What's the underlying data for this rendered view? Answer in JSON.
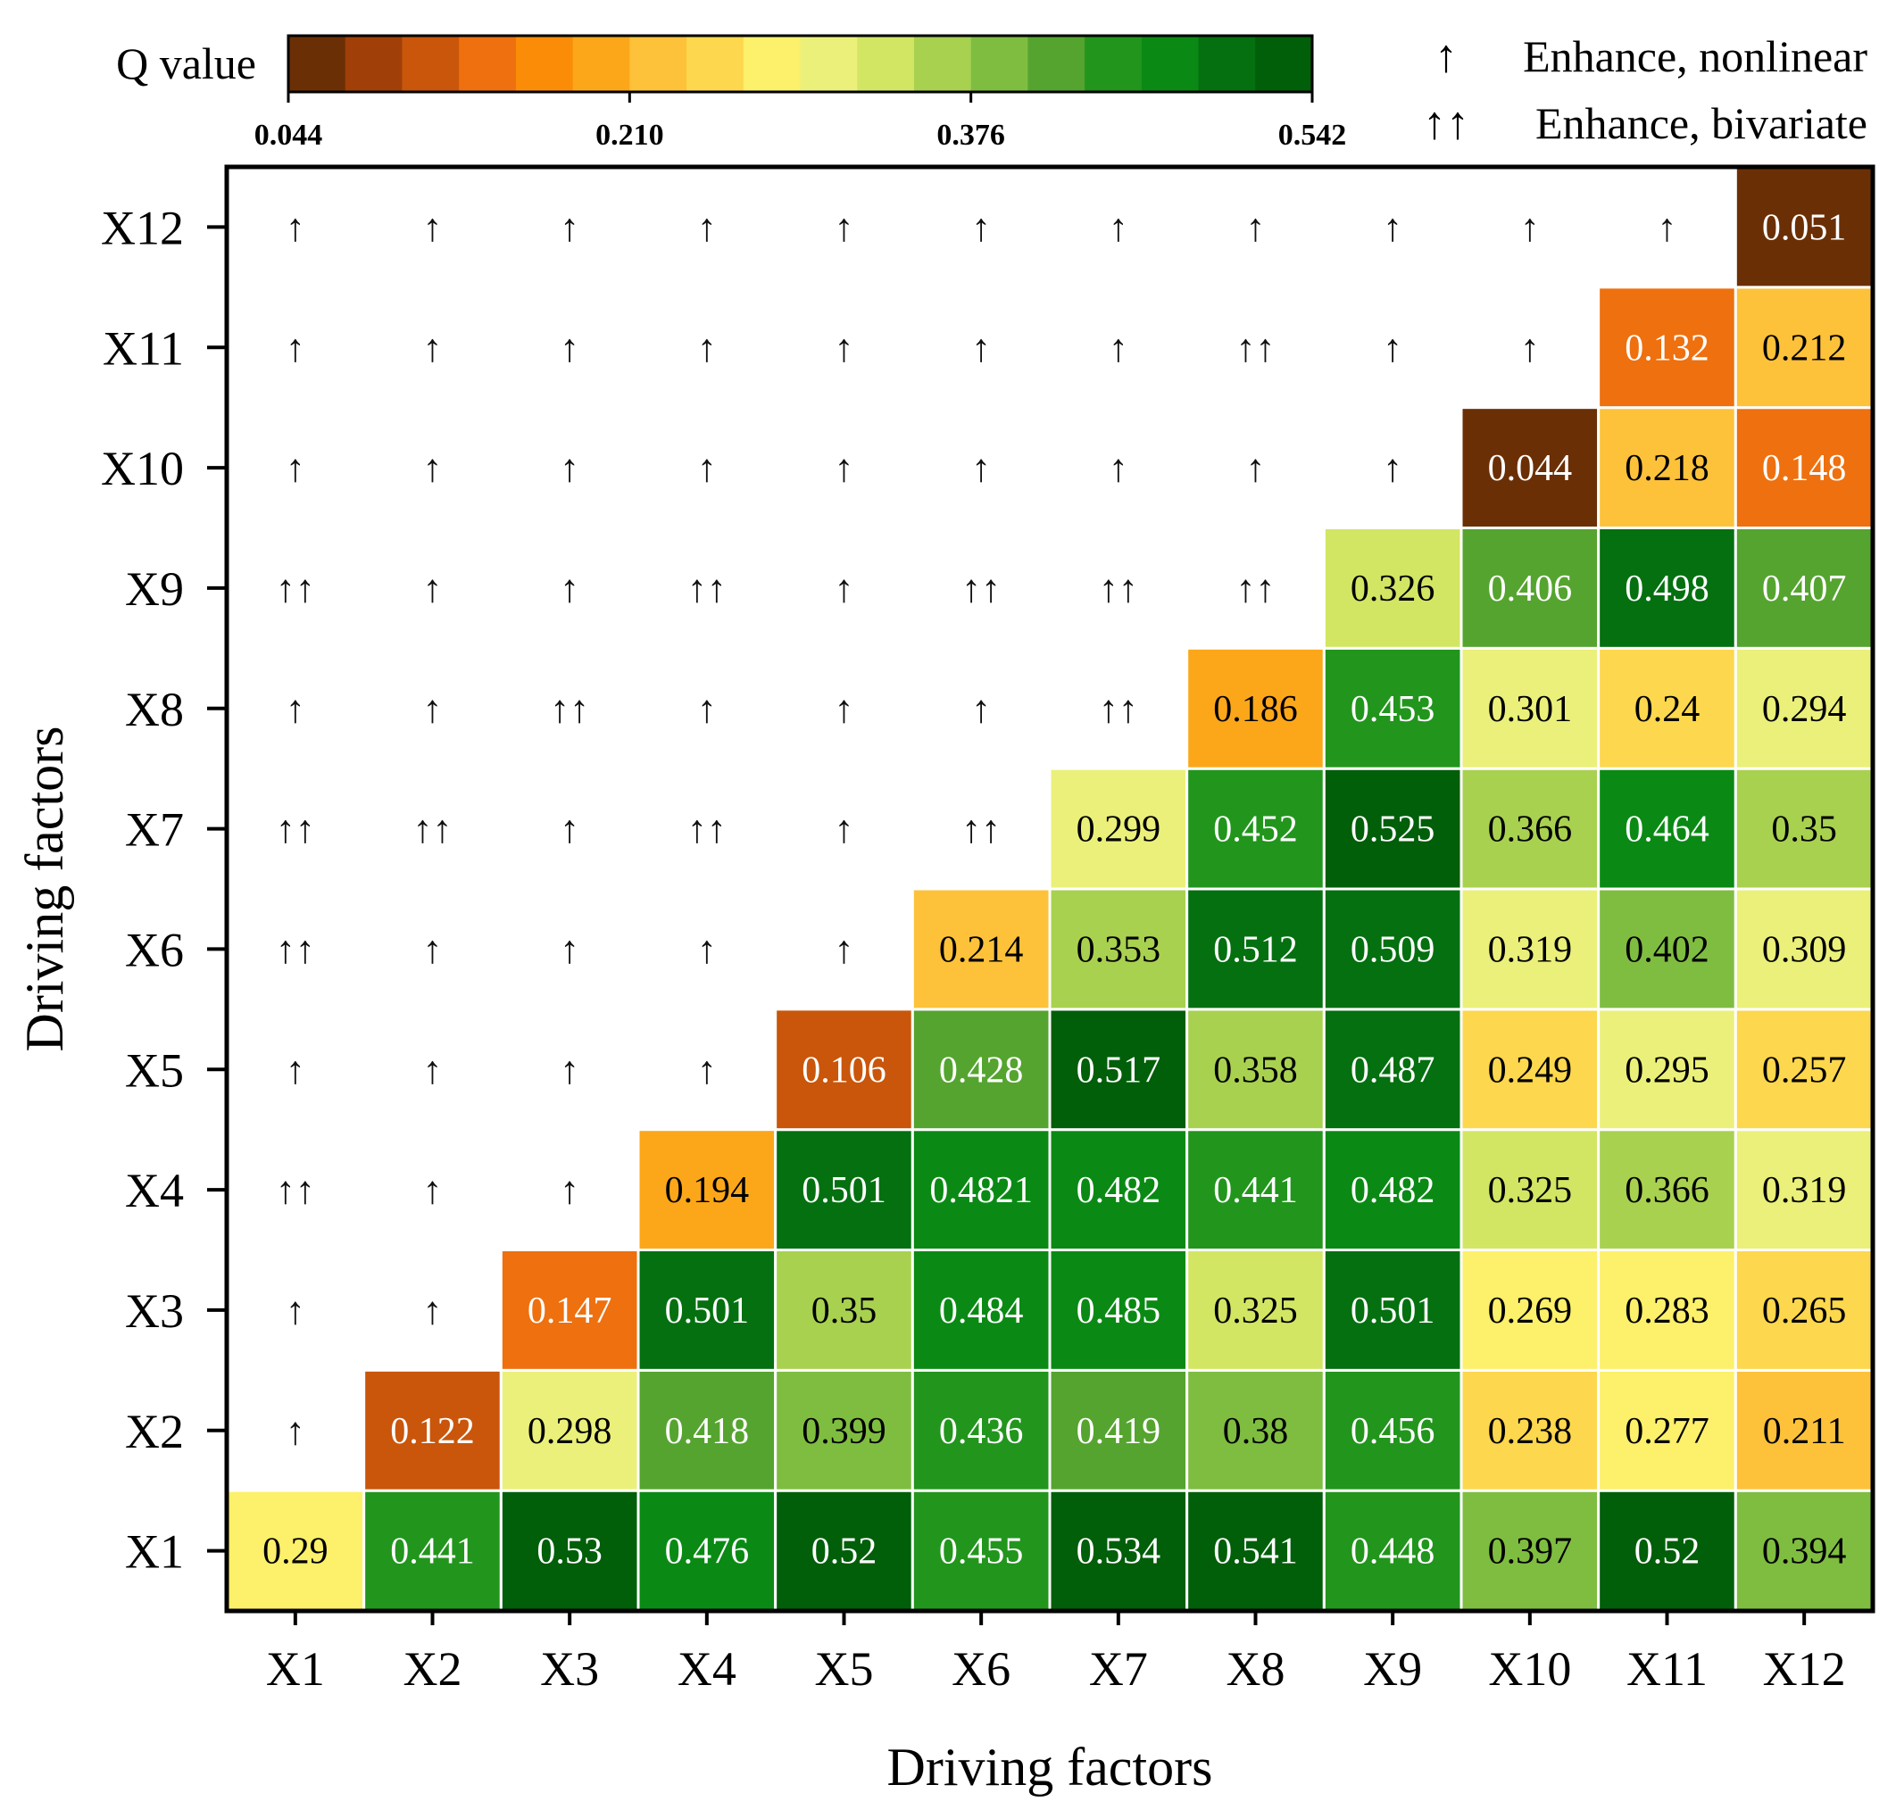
{
  "chart_data": {
    "type": "heatmap",
    "title": "",
    "xlabel": "Driving factors",
    "ylabel": "Driving factors",
    "factors": [
      "X1",
      "X2",
      "X3",
      "X4",
      "X5",
      "X6",
      "X7",
      "X8",
      "X9",
      "X10",
      "X11",
      "X12"
    ],
    "colorbar": {
      "title": "Q value",
      "ticks": [
        "0.044",
        "0.210",
        "0.376",
        "0.542"
      ],
      "min": 0.044,
      "max": 0.542,
      "colors": [
        "#6b2f06",
        "#a13f08",
        "#c9560b",
        "#ee700f",
        "#fb8c08",
        "#fca719",
        "#fdc23a",
        "#fdd74d",
        "#fdf06a",
        "#ebf07a",
        "#d2e664",
        "#a8d150",
        "#7fbd41",
        "#55a42f",
        "#22951d",
        "#0a8a14",
        "#047010",
        "#015e09"
      ]
    },
    "legend": [
      {
        "symbol": "↑",
        "label": "Enhance, nonlinear"
      },
      {
        "symbol": "↑↑",
        "label": "Enhance, bivariate"
      }
    ],
    "rows": [
      {
        "y": "X1",
        "q": [
          "0.29",
          "0.441",
          "0.53",
          "0.476",
          "0.52",
          "0.455",
          "0.534",
          "0.541",
          "0.448",
          "0.397",
          "0.52",
          "0.394"
        ],
        "arrows": []
      },
      {
        "y": "X2",
        "q": [
          "0.122",
          "0.298",
          "0.418",
          "0.399",
          "0.436",
          "0.419",
          "0.38",
          "0.456",
          "0.238",
          "0.277",
          "0.211"
        ],
        "arrows": [
          "↑"
        ]
      },
      {
        "y": "X3",
        "q": [
          "0.147",
          "0.501",
          "0.35",
          "0.484",
          "0.485",
          "0.325",
          "0.501",
          "0.269",
          "0.283",
          "0.265"
        ],
        "arrows": [
          "↑",
          "↑"
        ]
      },
      {
        "y": "X4",
        "q": [
          "0.194",
          "0.501",
          "0.4821",
          "0.482",
          "0.441",
          "0.482",
          "0.325",
          "0.366",
          "0.319"
        ],
        "arrows": [
          "↑↑",
          "↑",
          "↑"
        ]
      },
      {
        "y": "X5",
        "q": [
          "0.106",
          "0.428",
          "0.517",
          "0.358",
          "0.487",
          "0.249",
          "0.295",
          "0.257"
        ],
        "arrows": [
          "↑",
          "↑",
          "↑",
          "↑"
        ]
      },
      {
        "y": "X6",
        "q": [
          "0.214",
          "0.353",
          "0.512",
          "0.509",
          "0.319",
          "0.402",
          "0.309"
        ],
        "arrows": [
          "↑↑",
          "↑",
          "↑",
          "↑",
          "↑"
        ]
      },
      {
        "y": "X7",
        "q": [
          "0.299",
          "0.452",
          "0.525",
          "0.366",
          "0.464",
          "0.35"
        ],
        "arrows": [
          "↑↑",
          "↑↑",
          "↑",
          "↑↑",
          "↑",
          "↑↑"
        ]
      },
      {
        "y": "X8",
        "q": [
          "0.186",
          "0.453",
          "0.301",
          "0.24",
          "0.294"
        ],
        "arrows": [
          "↑",
          "↑",
          "↑↑",
          "↑",
          "↑",
          "↑",
          "↑↑"
        ]
      },
      {
        "y": "X9",
        "q": [
          "0.326",
          "0.406",
          "0.498",
          "0.407"
        ],
        "arrows": [
          "↑↑",
          "↑",
          "↑",
          "↑↑",
          "↑",
          "↑↑",
          "↑↑",
          "↑↑"
        ]
      },
      {
        "y": "X10",
        "q": [
          "0.044",
          "0.218",
          "0.148"
        ],
        "arrows": [
          "↑",
          "↑",
          "↑",
          "↑",
          "↑",
          "↑",
          "↑",
          "↑",
          "↑"
        ]
      },
      {
        "y": "X11",
        "q": [
          "0.132",
          "0.212"
        ],
        "arrows": [
          "↑",
          "↑",
          "↑",
          "↑",
          "↑",
          "↑",
          "↑",
          "↑↑",
          "↑",
          "↑"
        ]
      },
      {
        "y": "X12",
        "q": [
          "0.051"
        ],
        "arrows": [
          "↑",
          "↑",
          "↑",
          "↑",
          "↑",
          "↑",
          "↑",
          "↑",
          "↑",
          "↑",
          "↑"
        ]
      }
    ]
  }
}
